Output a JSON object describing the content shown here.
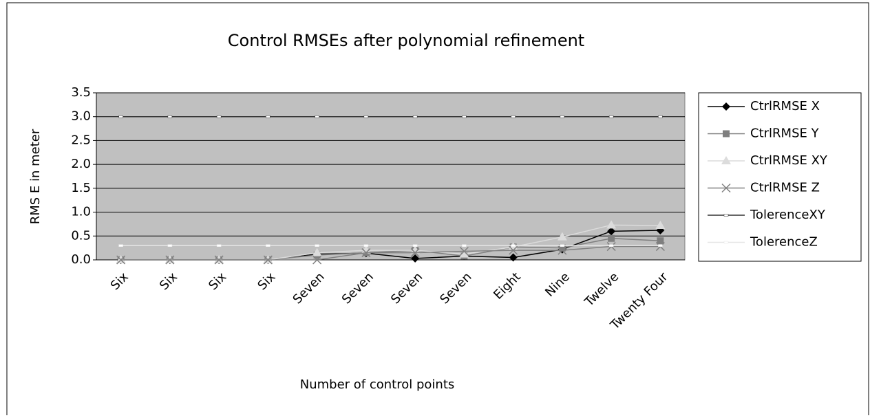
{
  "chart_data": {
    "type": "line",
    "title": "Control RMSEs after polynomial refinement",
    "x_label": "Number of control points",
    "y_label": "RMS E in meter",
    "categories": [
      "Six",
      "Six",
      "Six",
      "Six",
      "Seven",
      "Seven",
      "Seven",
      "Seven",
      "Eight",
      "Nine",
      "Twelve",
      "Twenty Four"
    ],
    "series": [
      {
        "name": "CtrlRMSE X",
        "color": "#000000",
        "marker": "diamond",
        "values": [
          0,
          0,
          0,
          0,
          0.12,
          0.14,
          0.03,
          0.08,
          0.05,
          0.22,
          0.6,
          0.62
        ]
      },
      {
        "name": "CtrlRMSE Y",
        "color": "#7f7f7f",
        "marker": "square",
        "values": [
          0,
          0,
          0,
          0,
          0.1,
          0.15,
          0.2,
          0.08,
          0.27,
          0.25,
          0.45,
          0.4
        ]
      },
      {
        "name": "CtrlRMSE XY",
        "color": "#dcdcdc",
        "marker": "triangle",
        "values": [
          0,
          0,
          0,
          0,
          0.15,
          0.2,
          0.2,
          0.12,
          0.27,
          0.48,
          0.73,
          0.72
        ]
      },
      {
        "name": "CtrlRMSE Z",
        "color": "#808080",
        "marker": "cross",
        "values": [
          0,
          0,
          0,
          0,
          0,
          0.15,
          0.15,
          0.18,
          0.2,
          0.2,
          0.28,
          0.28
        ]
      },
      {
        "name": "TolerenceXY",
        "color": "#333333",
        "marker": "dash",
        "values": [
          3,
          3,
          3,
          3,
          3,
          3,
          3,
          3,
          3,
          3,
          3,
          3
        ]
      },
      {
        "name": "TolerenceZ",
        "color": "#e6e6e6",
        "marker": "dash",
        "values": [
          0.3,
          0.3,
          0.3,
          0.3,
          0.3,
          0.3,
          0.3,
          0.3,
          0.3,
          0.3,
          0.3,
          0.3
        ]
      }
    ],
    "ylim": [
      0,
      3.5
    ],
    "yticks": [
      {
        "value": 0,
        "label": "0.0"
      },
      {
        "value": 0.5,
        "label": "0.5"
      },
      {
        "value": 1,
        "label": "1.0"
      },
      {
        "value": 1.5,
        "label": "1.5"
      },
      {
        "value": 2,
        "label": "2.0"
      },
      {
        "value": 2.5,
        "label": "2.5"
      },
      {
        "value": 3,
        "label": "3.0"
      },
      {
        "value": 3.5,
        "label": "3.5"
      }
    ],
    "grid": true,
    "legend": "right",
    "plot_background": "#c0c0c0"
  }
}
